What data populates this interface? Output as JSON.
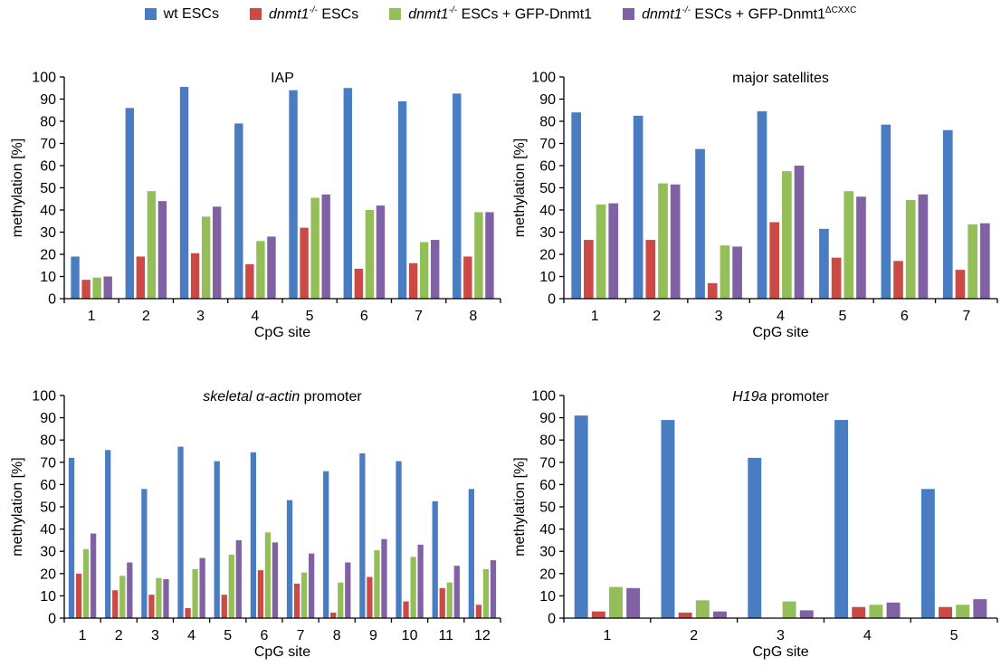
{
  "legend": [
    {
      "italic": "",
      "text": "wt ESCs",
      "sup": "",
      "color": "#4a7cc2"
    },
    {
      "italic": "dnmt1",
      "sup_inline": "-/-",
      "text": " ESCs",
      "color": "#cc4a45"
    },
    {
      "italic": "dnmt1",
      "sup_inline": "-/-",
      "text": " ESCs + GFP-Dnmt1",
      "color": "#94be57"
    },
    {
      "italic": "dnmt1",
      "sup_inline": "-/-",
      "text": " ESCs + GFP-Dnmt1",
      "sup": "ΔCXXC",
      "color": "#8062a4"
    }
  ],
  "chart_data": [
    {
      "type": "bar",
      "title_italic": "",
      "title": "IAP",
      "ylabel": "methylation [%]",
      "xlabel": "CpG site",
      "ylim": [
        0,
        100
      ],
      "ytick_step": 10,
      "categories": [
        "1",
        "2",
        "3",
        "4",
        "5",
        "6",
        "7",
        "8"
      ],
      "series": [
        {
          "name": "wt ESCs",
          "color": "#4a7cc2",
          "values": [
            19,
            86,
            95.5,
            79,
            94,
            95,
            89,
            92.5
          ]
        },
        {
          "name": "dnmt1-/- ESCs",
          "color": "#cc4a45",
          "values": [
            8.5,
            19,
            20.5,
            15.5,
            32,
            13.5,
            16,
            19
          ]
        },
        {
          "name": "dnmt1-/- ESCs + GFP-Dnmt1",
          "color": "#94be57",
          "values": [
            9.5,
            48.5,
            37,
            26,
            45.5,
            40,
            25.5,
            39
          ]
        },
        {
          "name": "dnmt1-/- ESCs + GFP-Dnmt1ΔCXXC",
          "color": "#8062a4",
          "values": [
            10,
            44,
            41.5,
            28,
            47,
            42,
            26.5,
            39
          ]
        }
      ]
    },
    {
      "type": "bar",
      "title_italic": "",
      "title": "major satellites",
      "ylabel": "methylation [%]",
      "xlabel": "CpG site",
      "ylim": [
        0,
        100
      ],
      "ytick_step": 10,
      "categories": [
        "1",
        "2",
        "3",
        "4",
        "5",
        "6",
        "7"
      ],
      "series": [
        {
          "name": "wt ESCs",
          "color": "#4a7cc2",
          "values": [
            84,
            82.5,
            67.5,
            84.5,
            31.5,
            78.5,
            76
          ]
        },
        {
          "name": "dnmt1-/- ESCs",
          "color": "#cc4a45",
          "values": [
            26.5,
            26.5,
            7,
            34.5,
            18.5,
            17,
            13
          ]
        },
        {
          "name": "dnmt1-/- ESCs + GFP-Dnmt1",
          "color": "#94be57",
          "values": [
            42.5,
            52,
            24,
            57.5,
            48.5,
            44.5,
            33.5
          ]
        },
        {
          "name": "dnmt1-/- ESCs + GFP-Dnmt1ΔCXXC",
          "color": "#8062a4",
          "values": [
            43,
            51.5,
            23.5,
            60,
            46,
            47,
            34
          ]
        }
      ]
    },
    {
      "type": "bar",
      "title_italic": "skeletal α-actin",
      "title": " promoter",
      "ylabel": "methylation [%]",
      "xlabel": "CpG site",
      "ylim": [
        0,
        100
      ],
      "ytick_step": 10,
      "categories": [
        "1",
        "2",
        "3",
        "4",
        "5",
        "6",
        "7",
        "8",
        "9",
        "10",
        "11",
        "12"
      ],
      "series": [
        {
          "name": "wt ESCs",
          "color": "#4a7cc2",
          "values": [
            72,
            75.5,
            58,
            77,
            70.5,
            74.5,
            53,
            66,
            74,
            70.5,
            52.5,
            58
          ]
        },
        {
          "name": "dnmt1-/- ESCs",
          "color": "#cc4a45",
          "values": [
            20,
            12.5,
            10.5,
            4.5,
            10.5,
            21.5,
            15.5,
            2.5,
            18.5,
            7.5,
            13.5,
            6
          ]
        },
        {
          "name": "dnmt1-/- ESCs + GFP-Dnmt1",
          "color": "#94be57",
          "values": [
            31,
            19,
            18,
            22,
            28.5,
            38.5,
            20.5,
            16,
            30.5,
            27.5,
            16,
            22
          ]
        },
        {
          "name": "dnmt1-/- ESCs + GFP-Dnmt1ΔCXXC",
          "color": "#8062a4",
          "values": [
            38,
            25,
            17.5,
            27,
            35,
            34,
            29,
            25,
            35.5,
            33,
            23.5,
            26
          ]
        }
      ]
    },
    {
      "type": "bar",
      "title_italic": "H19a",
      "title": " promoter",
      "ylabel": "methylation [%]",
      "xlabel": "CpG site",
      "ylim": [
        0,
        100
      ],
      "ytick_step": 10,
      "categories": [
        "1",
        "2",
        "3",
        "4",
        "5"
      ],
      "series": [
        {
          "name": "wt ESCs",
          "color": "#4a7cc2",
          "values": [
            91,
            89,
            72,
            89,
            58
          ]
        },
        {
          "name": "dnmt1-/- ESCs",
          "color": "#cc4a45",
          "values": [
            3,
            2.5,
            0,
            5,
            5
          ]
        },
        {
          "name": "dnmt1-/- ESCs + GFP-Dnmt1",
          "color": "#94be57",
          "values": [
            14,
            8,
            7.5,
            6,
            6
          ]
        },
        {
          "name": "dnmt1-/- ESCs + GFP-Dnmt1ΔCXXC",
          "color": "#8062a4",
          "values": [
            13.5,
            3,
            3.5,
            7,
            8.5
          ]
        }
      ]
    }
  ]
}
